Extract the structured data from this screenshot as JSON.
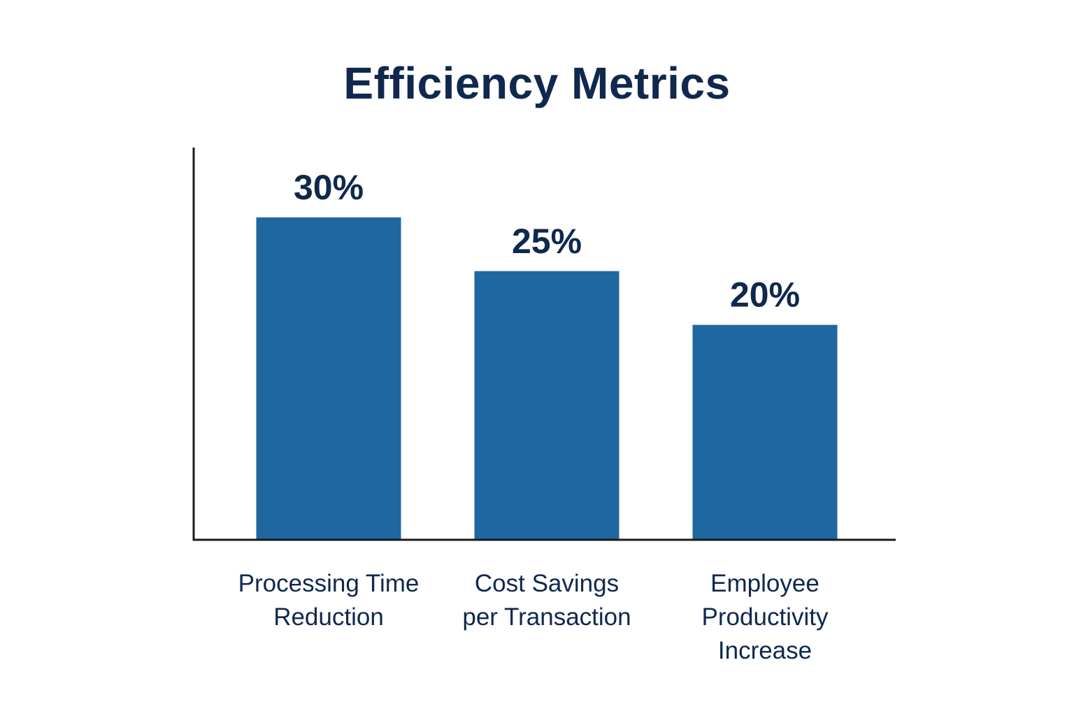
{
  "colors": {
    "bar": "#1f67a0",
    "text_dark": "#10284e",
    "axis": "#1a1a1a",
    "background": "#ffffff"
  },
  "chart_data": {
    "type": "bar",
    "title": "Efficiency Metrics",
    "xlabel": "",
    "ylabel": "",
    "ylim": [
      0,
      36.5
    ],
    "grid": false,
    "legend": "none",
    "categories": [
      [
        "Processing Time",
        "Reduction"
      ],
      [
        "Cost Savings",
        "per Transaction"
      ],
      [
        "Employee",
        "Productivity",
        "Increase"
      ]
    ],
    "values": [
      30,
      25,
      20
    ],
    "data_labels": [
      "30%",
      "25%",
      "20%"
    ]
  }
}
